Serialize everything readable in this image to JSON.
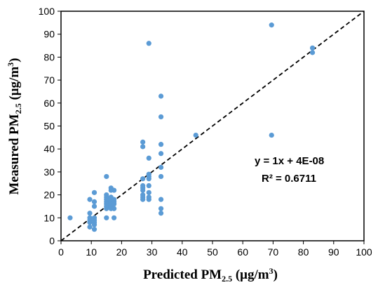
{
  "chart_data": {
    "type": "scatter",
    "title": "",
    "xlabel": {
      "main": "Predicted PM",
      "sub": "2.5",
      "unit": " (μg/m",
      "sup": "3",
      "close": ")"
    },
    "ylabel": {
      "main": "Measured PM",
      "sub": "2.5",
      "unit": " (μg/m",
      "sup": "3",
      "close": ")"
    },
    "xlim": [
      0,
      100
    ],
    "ylim": [
      0,
      100
    ],
    "xticks": [
      0,
      10,
      20,
      30,
      40,
      50,
      60,
      70,
      80,
      90,
      100
    ],
    "yticks": [
      0,
      10,
      20,
      30,
      40,
      50,
      60,
      70,
      80,
      90,
      100
    ],
    "grid": false,
    "marker_color": "#5b9bd5",
    "trendline": {
      "style": "dashed",
      "color": "#000000",
      "slope": 1,
      "intercept": 0
    },
    "annotations": [
      "y = 1x + 4E-08",
      "R² = 0.6711"
    ],
    "points": [
      [
        3,
        10
      ],
      [
        9.5,
        6
      ],
      [
        9.5,
        8
      ],
      [
        9.5,
        9
      ],
      [
        9.5,
        10
      ],
      [
        9.5,
        12
      ],
      [
        9.5,
        18
      ],
      [
        11,
        5
      ],
      [
        11,
        7
      ],
      [
        11,
        8
      ],
      [
        11,
        9
      ],
      [
        11,
        10
      ],
      [
        11,
        15
      ],
      [
        11,
        17
      ],
      [
        11,
        21
      ],
      [
        15,
        10
      ],
      [
        15,
        14
      ],
      [
        15,
        15
      ],
      [
        15,
        16
      ],
      [
        15,
        17
      ],
      [
        15,
        18
      ],
      [
        15,
        19
      ],
      [
        15,
        20
      ],
      [
        15,
        28
      ],
      [
        16.5,
        14
      ],
      [
        16.5,
        15
      ],
      [
        16.5,
        16
      ],
      [
        16.5,
        17
      ],
      [
        16.5,
        18
      ],
      [
        16.5,
        19
      ],
      [
        16.5,
        22
      ],
      [
        16.5,
        23
      ],
      [
        17.5,
        10
      ],
      [
        17.5,
        14
      ],
      [
        17.5,
        16
      ],
      [
        17.5,
        17
      ],
      [
        17.5,
        18
      ],
      [
        17.5,
        22
      ],
      [
        27,
        18
      ],
      [
        27,
        19
      ],
      [
        27,
        20
      ],
      [
        27,
        22
      ],
      [
        27,
        23
      ],
      [
        27,
        24
      ],
      [
        27,
        27
      ],
      [
        27,
        41
      ],
      [
        27,
        43
      ],
      [
        29,
        18
      ],
      [
        29,
        19
      ],
      [
        29,
        21
      ],
      [
        29,
        24
      ],
      [
        29,
        27
      ],
      [
        29,
        28
      ],
      [
        29,
        29
      ],
      [
        29,
        36
      ],
      [
        29,
        86
      ],
      [
        33,
        12
      ],
      [
        33,
        14
      ],
      [
        33,
        18
      ],
      [
        33,
        28
      ],
      [
        33,
        32
      ],
      [
        33,
        38
      ],
      [
        33,
        42
      ],
      [
        33,
        54
      ],
      [
        33,
        63
      ],
      [
        44.5,
        46
      ],
      [
        69.5,
        46
      ],
      [
        69.5,
        94
      ],
      [
        83,
        82
      ],
      [
        83,
        84
      ]
    ]
  }
}
